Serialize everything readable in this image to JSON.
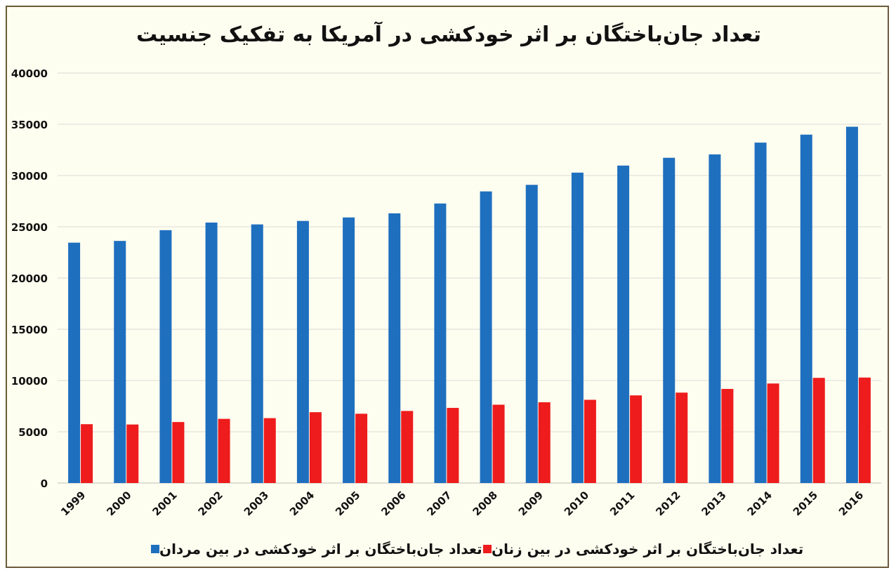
{
  "chart_data": {
    "type": "bar",
    "title": "تعداد جان‌باختگان بر اثر خودکشی در آمریکا به تفکیک جنسیت",
    "categories": [
      "1999",
      "2000",
      "2001",
      "2002",
      "2003",
      "2004",
      "2005",
      "2006",
      "2007",
      "2008",
      "2009",
      "2010",
      "2011",
      "2012",
      "2013",
      "2014",
      "2015",
      "2016"
    ],
    "series": [
      {
        "name": "تعداد جان‌باختگان بر اثر خودکشی در بین مردان",
        "color": "#1f6fbf",
        "values": [
          23450,
          23620,
          24670,
          25410,
          25230,
          25570,
          25910,
          26310,
          27270,
          28450,
          29090,
          30280,
          30970,
          31730,
          32060,
          33210,
          33990,
          34760
        ]
      },
      {
        "name": "تعداد جان‌باختگان بر اثر خودکشی در بین زنان",
        "color": "#ee1c1c",
        "values": [
          5740,
          5710,
          5950,
          6260,
          6330,
          6910,
          6760,
          7030,
          7330,
          7640,
          7880,
          8120,
          8550,
          8820,
          9180,
          9710,
          10260,
          10290
        ]
      }
    ],
    "yticks": [
      0,
      5000,
      10000,
      15000,
      20000,
      25000,
      30000,
      35000,
      40000
    ],
    "ylim": [
      0,
      40000
    ],
    "xlabel": "",
    "ylabel": "",
    "grid": true,
    "legend_position": "bottom"
  }
}
